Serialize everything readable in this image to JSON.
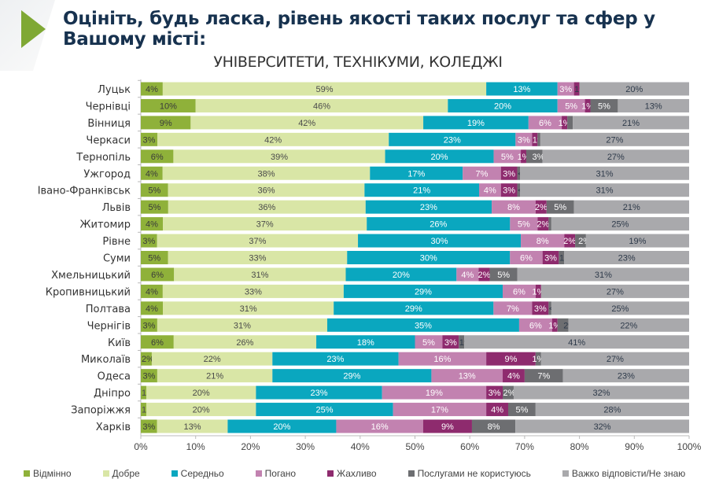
{
  "header": {
    "title": "Оцініть, будь ласка, рівень якості таких послуг та сфер у Вашому місті:",
    "subtitle": "УНІВЕРСИТЕТИ, ТЕХНІКУМИ, КОЛЕДЖІ"
  },
  "chart_data": {
    "type": "bar",
    "orientation": "horizontal",
    "stacked": true,
    "title": "УНІВЕРСИТЕТИ, ТЕХНІКУМИ, КОЛЕДЖІ",
    "xlim": [
      0,
      100
    ],
    "x_ticks": [
      "0%",
      "10%",
      "20%",
      "30%",
      "40%",
      "50%",
      "60%",
      "70%",
      "80%",
      "90%",
      "100%"
    ],
    "grid": false,
    "legend_position": "bottom",
    "note": "0.5 denotes values printed as <1%",
    "categories": [
      "Луцьк",
      "Чернівці",
      "Вінниця",
      "Черкаси",
      "Тернопіль",
      "Ужгород",
      "Івано-Франківськ",
      "Львів",
      "Житомир",
      "Рівне",
      "Суми",
      "Хмельницький",
      "Кропивницький",
      "Полтава",
      "Чернігів",
      "Київ",
      "Миколаїв",
      "Одеса",
      "Дніпро",
      "Запоріжжя",
      "Харків"
    ],
    "series": [
      {
        "name": "Відмінно",
        "color": "#8fb13a",
        "label_color": "#3a3a3a",
        "values": [
          4,
          10,
          9,
          3,
          6,
          4,
          5,
          5,
          4,
          3,
          5,
          6,
          4,
          4,
          3,
          6,
          2,
          3,
          1,
          1,
          3
        ]
      },
      {
        "name": "Добре",
        "color": "#d9e6a6",
        "label_color": "#4a4a4a",
        "values": [
          59,
          46,
          42,
          42,
          39,
          38,
          36,
          36,
          37,
          37,
          33,
          31,
          33,
          31,
          31,
          26,
          22,
          21,
          20,
          20,
          13
        ]
      },
      {
        "name": "Середньо",
        "color": "#0aa7bf",
        "label_color": "#ffffff",
        "values": [
          13,
          20,
          19,
          23,
          20,
          17,
          21,
          23,
          26,
          30,
          30,
          20,
          29,
          29,
          35,
          18,
          23,
          29,
          23,
          25,
          20
        ]
      },
      {
        "name": "Погано",
        "color": "#c282b0",
        "label_color": "#ffffff",
        "values": [
          3,
          5,
          6,
          3,
          5,
          7,
          4,
          8,
          5,
          8,
          6,
          4,
          6,
          7,
          6,
          5,
          16,
          13,
          19,
          17,
          16
        ]
      },
      {
        "name": "Жахливо",
        "color": "#8e2b6e",
        "label_color": "#ffffff",
        "values": [
          1,
          1,
          1,
          1,
          1,
          3,
          3,
          2,
          2,
          2,
          3,
          2,
          1,
          3,
          1,
          3,
          9,
          4,
          3,
          4,
          9
        ]
      },
      {
        "name": "Послугами не користуюсь",
        "color": "#6d6e71",
        "label_color": "#ffffff",
        "values": [
          0,
          5,
          1,
          0.5,
          3,
          0.5,
          0.5,
          5,
          0.5,
          2,
          1,
          5,
          0,
          0.5,
          2,
          1,
          1,
          7,
          2,
          5,
          8
        ]
      },
      {
        "name": "Важко відповісти/Не знаю",
        "color": "#a9a9ac",
        "label_color": "#2e3a4a",
        "values": [
          20,
          13,
          21,
          27,
          27,
          31,
          31,
          21,
          25,
          19,
          23,
          31,
          27,
          25,
          22,
          41,
          27,
          23,
          32,
          28,
          32
        ]
      }
    ]
  }
}
